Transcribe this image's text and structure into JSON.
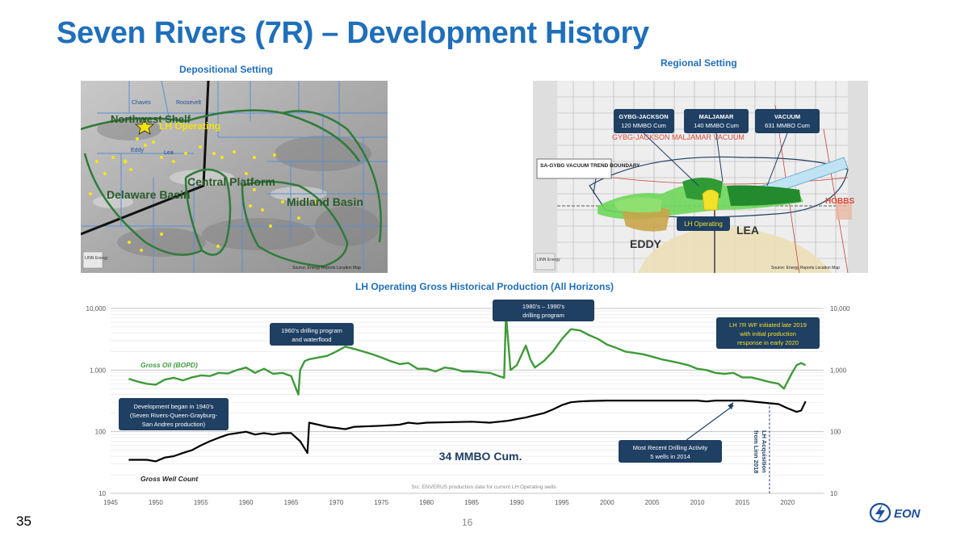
{
  "page": {
    "title": "Seven Rivers (7R) – Development History",
    "page_number": "35",
    "slide_number": "16"
  },
  "left_map": {
    "heading": "Depositional Setting",
    "labels": {
      "northwest_shelf": "Northwest Shelf",
      "lh_operating": "LH Operating",
      "central_platform": "Central Platform",
      "delaware_basin": "Delaware Basin",
      "midland_basin": "Midland Basin",
      "chaves": "Chaves",
      "roosevelt": "Roosevelt",
      "eddy": "Eddy",
      "lea": "Lea"
    },
    "credit": "Source: Energy Reports Location Map",
    "logo_text": "LINN Energy"
  },
  "right_map": {
    "heading": "Regional Setting",
    "callouts": [
      {
        "name": "GYBG-JACKSON",
        "value": "120 MMBO Cum"
      },
      {
        "name": "MALJAMAR",
        "value": "140 MMBO Cum"
      },
      {
        "name": "VACUUM",
        "value": "631 MMBO Cum"
      }
    ],
    "trend_label": "SA-GYBG VACUUM TREND BOUNDARY",
    "lh_operating": "LH Operating",
    "eddy": "EDDY",
    "lea": "LEA",
    "hobbs": "HOBBS",
    "field_row": "GYBG-JACKSON   MALJAMAR   VACUUM",
    "credit": "Source: Energy Reports Location Map",
    "logo_text": "LINN Energy"
  },
  "chart_data": {
    "type": "line",
    "title": "LH Operating Gross Historical Production (All Horizons)",
    "x_ticks": [
      1945,
      1950,
      1955,
      1960,
      1965,
      1970,
      1975,
      1980,
      1985,
      1990,
      1995,
      2000,
      2005,
      2010,
      2015,
      2020
    ],
    "xlim": [
      1945,
      2024
    ],
    "y_scale": "log",
    "ylim": [
      10,
      10000
    ],
    "y_ticks": [
      "10",
      "100",
      "1,000",
      "10,000"
    ],
    "y_tick_values": [
      10,
      100,
      1000,
      10000
    ],
    "grid": true,
    "series": [
      {
        "name": "Gross Oil (BOPD)",
        "color": "#3f9a3a",
        "x": [
          1947,
          1948,
          1949,
          1950,
          1951,
          1952,
          1953,
          1954,
          1955,
          1956,
          1957,
          1958,
          1959,
          1960,
          1961,
          1962,
          1963,
          1964,
          1965,
          1965.8,
          1966,
          1966.5,
          1967,
          1968,
          1969,
          1970,
          1971,
          1972,
          1973,
          1974,
          1975,
          1976,
          1977,
          1978,
          1979,
          1980,
          1981,
          1982,
          1983,
          1984,
          1985,
          1986,
          1987,
          1988,
          1988.6,
          1988.8,
          1989.3,
          1990,
          1991,
          1991.5,
          1992,
          1993,
          1994,
          1995,
          1996,
          1997,
          1998,
          1999,
          2000,
          2001,
          2002,
          2003,
          2004,
          2005,
          2006,
          2007,
          2008,
          2009,
          2010,
          2011,
          2012,
          2013,
          2014,
          2015,
          2016,
          2017,
          2018,
          2019,
          2019.6,
          2020,
          2020.5,
          2021,
          2021.5,
          2022
        ],
        "values": [
          720,
          650,
          600,
          580,
          700,
          750,
          680,
          760,
          820,
          800,
          900,
          880,
          1000,
          1100,
          900,
          1050,
          870,
          900,
          800,
          400,
          1000,
          1400,
          1500,
          1600,
          1700,
          2000,
          2400,
          2200,
          2000,
          1800,
          1600,
          1400,
          1250,
          1300,
          1050,
          1050,
          950,
          1100,
          1050,
          950,
          950,
          920,
          900,
          800,
          750,
          8000,
          1000,
          1200,
          2500,
          1500,
          1100,
          1400,
          2000,
          3200,
          4600,
          4400,
          3700,
          3200,
          2600,
          2300,
          2000,
          1900,
          1800,
          1650,
          1500,
          1400,
          1300,
          1200,
          1050,
          1000,
          900,
          870,
          900,
          760,
          760,
          700,
          640,
          600,
          500,
          650,
          900,
          1200,
          1300,
          1200
        ]
      },
      {
        "name": "Gross Well Count",
        "color": "#000000",
        "x": [
          1947,
          1949,
          1950,
          1951,
          1952,
          1953,
          1954,
          1955,
          1956,
          1957,
          1958,
          1959,
          1960,
          1961,
          1962,
          1963,
          1964,
          1965,
          1966,
          1966.8,
          1967,
          1968,
          1969,
          1970,
          1971,
          1972,
          1975,
          1977,
          1978,
          1979,
          1980,
          1985,
          1987,
          1989,
          1990,
          1991,
          1992,
          1993,
          1994,
          1995,
          1996,
          1997,
          1998,
          2000,
          2005,
          2010,
          2011,
          2012,
          2015,
          2018,
          2019,
          2020,
          2021,
          2021.5,
          2022
        ],
        "values": [
          35,
          35,
          33,
          38,
          40,
          45,
          50,
          60,
          70,
          80,
          90,
          95,
          100,
          90,
          95,
          90,
          95,
          95,
          70,
          45,
          140,
          130,
          120,
          115,
          110,
          120,
          125,
          130,
          140,
          135,
          140,
          145,
          140,
          150,
          160,
          170,
          185,
          200,
          230,
          270,
          300,
          310,
          315,
          320,
          320,
          320,
          310,
          320,
          320,
          290,
          280,
          240,
          210,
          220,
          310
        ]
      }
    ],
    "series_labels": {
      "oil": "Gross Oil (BOPD)",
      "wells": "Gross Well Count"
    },
    "annotations": [
      {
        "text": "1960’s drilling program and waterflood"
      },
      {
        "text": "1980’s – 1990’s drilling program"
      },
      {
        "text": "LH 7R WF initiated late 2019 with initial production response in early 2020"
      },
      {
        "text": "Development began in 1940’s (Seven Rivers-Queen-Grayburg-San Andres production)"
      },
      {
        "text": "Most Recent Drilling Activity 5 wells in 2014"
      },
      {
        "text": "34 MMBO Cum."
      },
      {
        "text": "LH Acquisition from Linn 2018"
      },
      {
        "text": "Src: ENVERUS production data for current LH Operating wells"
      }
    ]
  },
  "colors": {
    "title_blue": "#1f6fba",
    "callout_navy": "#1f3f63",
    "oil_green": "#3f9a3a"
  }
}
